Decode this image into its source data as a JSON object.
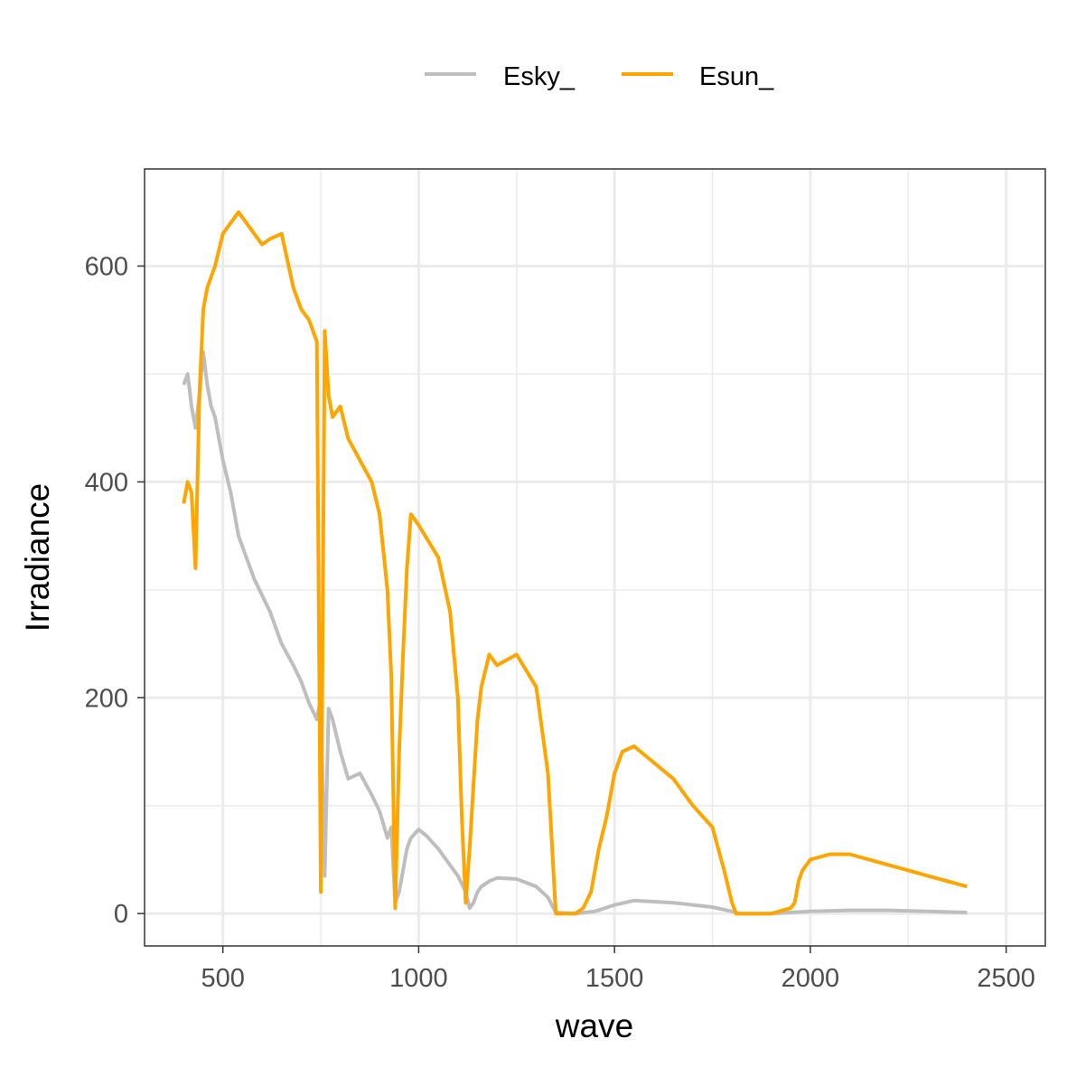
{
  "chart_data": {
    "type": "line",
    "title": "",
    "xlabel": "wave",
    "ylabel": "Irradiance",
    "xlim": [
      300,
      2600
    ],
    "ylim": [
      -30,
      690
    ],
    "x_ticks": [
      500,
      1000,
      1500,
      2000,
      2500
    ],
    "y_ticks": [
      0,
      200,
      400,
      600
    ],
    "grid": true,
    "legend_position": "top",
    "series": [
      {
        "name": "Esky_",
        "color": "#bebebe",
        "x": [
          400,
          410,
          420,
          430,
          440,
          450,
          460,
          470,
          480,
          500,
          520,
          540,
          560,
          580,
          600,
          620,
          650,
          680,
          700,
          720,
          740,
          750,
          760,
          770,
          780,
          800,
          820,
          850,
          880,
          900,
          920,
          930,
          940,
          950,
          960,
          970,
          980,
          1000,
          1020,
          1050,
          1080,
          1100,
          1120,
          1130,
          1140,
          1150,
          1160,
          1180,
          1200,
          1250,
          1300,
          1330,
          1350,
          1400,
          1450,
          1500,
          1550,
          1600,
          1650,
          1700,
          1750,
          1800,
          1820,
          1850,
          1900,
          1950,
          2000,
          2100,
          2200,
          2300,
          2400
        ],
        "y": [
          490,
          500,
          470,
          450,
          480,
          520,
          490,
          470,
          460,
          420,
          390,
          350,
          330,
          310,
          295,
          280,
          250,
          230,
          215,
          195,
          180,
          200,
          35,
          190,
          180,
          150,
          125,
          130,
          110,
          95,
          70,
          80,
          10,
          20,
          40,
          60,
          70,
          78,
          72,
          60,
          45,
          35,
          20,
          5,
          10,
          20,
          25,
          30,
          33,
          32,
          25,
          15,
          1,
          0,
          2,
          8,
          12,
          11,
          10,
          8,
          6,
          2,
          0,
          0,
          0,
          1,
          2,
          3,
          3,
          2,
          1
        ]
      },
      {
        "name": "Esun_",
        "color": "#ffa500",
        "x": [
          400,
          410,
          420,
          430,
          440,
          450,
          460,
          480,
          500,
          520,
          540,
          560,
          580,
          600,
          620,
          650,
          680,
          700,
          720,
          740,
          750,
          760,
          770,
          780,
          800,
          820,
          850,
          880,
          900,
          920,
          930,
          940,
          950,
          960,
          970,
          980,
          1000,
          1050,
          1080,
          1100,
          1110,
          1120,
          1130,
          1140,
          1150,
          1160,
          1180,
          1200,
          1250,
          1300,
          1330,
          1350,
          1400,
          1420,
          1440,
          1460,
          1480,
          1500,
          1520,
          1550,
          1600,
          1650,
          1700,
          1750,
          1780,
          1800,
          1810,
          1820,
          1850,
          1900,
          1950,
          1960,
          1970,
          1980,
          2000,
          2050,
          2100,
          2150,
          2200,
          2250,
          2300,
          2350,
          2400
        ],
        "y": [
          380,
          400,
          390,
          320,
          480,
          560,
          580,
          600,
          630,
          640,
          650,
          640,
          630,
          620,
          625,
          630,
          580,
          560,
          550,
          530,
          20,
          540,
          480,
          460,
          470,
          440,
          420,
          400,
          370,
          300,
          220,
          5,
          150,
          240,
          320,
          370,
          360,
          330,
          280,
          200,
          90,
          10,
          60,
          120,
          180,
          210,
          240,
          230,
          240,
          210,
          130,
          0,
          0,
          5,
          20,
          60,
          90,
          130,
          150,
          155,
          140,
          125,
          100,
          80,
          40,
          10,
          0,
          0,
          0,
          0,
          5,
          10,
          30,
          40,
          50,
          55,
          55,
          50,
          45,
          40,
          35,
          30,
          25
        ]
      }
    ]
  }
}
